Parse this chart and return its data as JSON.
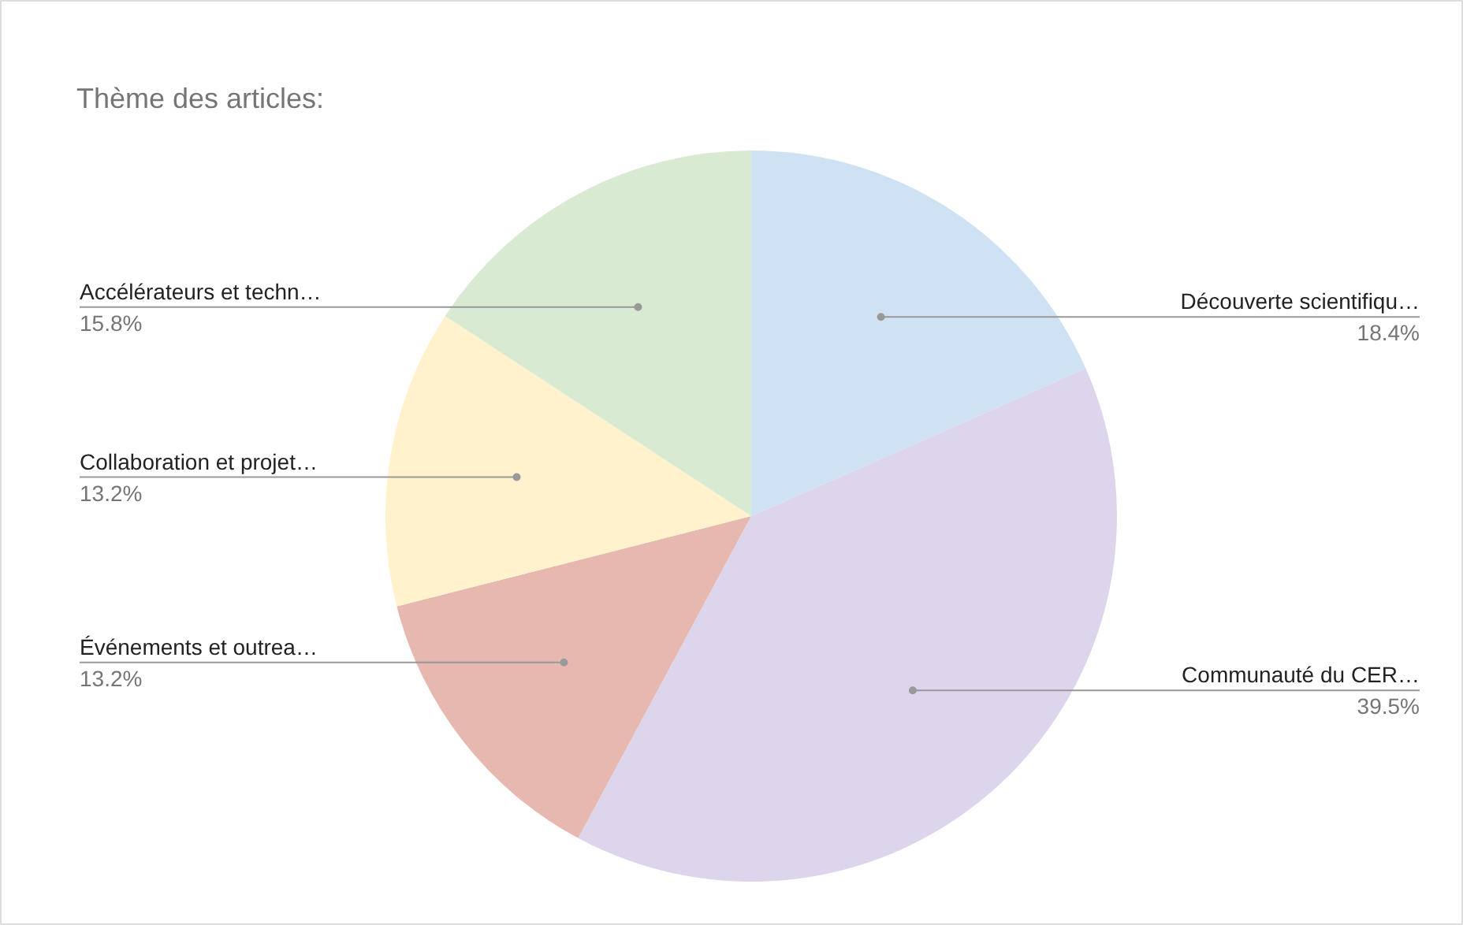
{
  "chart_data": {
    "type": "pie",
    "title": "Thème des articles:",
    "categories": [
      "Découverte scientifiqu…",
      "Communauté du CER…",
      "Événements et outrea…",
      "Collaboration et projet…",
      "Accélérateurs et techn…"
    ],
    "values": [
      18.4,
      39.5,
      13.2,
      13.2,
      15.8
    ],
    "value_labels": [
      "18.4%",
      "39.5%",
      "13.2%",
      "13.2%",
      "15.8%"
    ],
    "colors": [
      "#cfe2f3",
      "#ddd5ec",
      "#e6b8af",
      "#fff2cc",
      "#d9ead3"
    ]
  }
}
